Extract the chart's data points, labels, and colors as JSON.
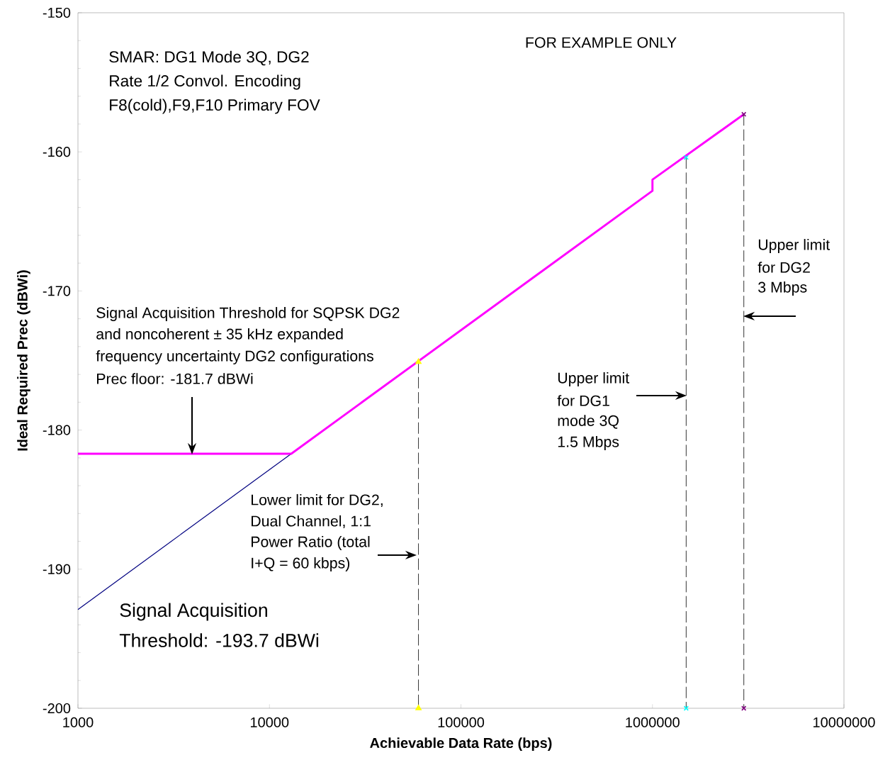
{
  "chart_data": {
    "type": "line",
    "xlabel": "Achievable Data Rate (bps)",
    "ylabel": "Ideal Required Prec (dBWi)",
    "log": "x",
    "xlim": [
      1000,
      10000000
    ],
    "xticks": [
      1000,
      10000,
      100000,
      1000000,
      10000000
    ],
    "ylim": [
      -200,
      -150
    ],
    "yticks": [
      -200,
      -190,
      -180,
      -170,
      -160,
      -150
    ],
    "series": [
      {
        "color": "#000080",
        "marker": "none",
        "line_style": "solid",
        "x": [
          1000,
          13000
        ],
        "values": [
          -192.9,
          -181.7
        ]
      },
      {
        "color": "#ff00ff",
        "marker": "none",
        "line_style": "solid",
        "x": [
          1000,
          13000,
          1000000,
          1000000,
          3000000
        ],
        "values": [
          -181.7,
          -181.7,
          -162.8,
          -162.0,
          -157.3
        ]
      },
      {
        "color": "#000000",
        "marker": "none",
        "line_style": "dashed",
        "x": [
          60000,
          60000
        ],
        "values": [
          -175.1,
          -200
        ]
      },
      {
        "color": "#000000",
        "marker": "none",
        "line_style": "dashed",
        "x": [
          1500000,
          1500000
        ],
        "values": [
          -160.4,
          -200
        ]
      },
      {
        "color": "#000000",
        "marker": "none",
        "line_style": "dashed",
        "x": [
          3000000,
          3000000
        ],
        "values": [
          -157.3,
          -200
        ]
      },
      {
        "type": "scatter",
        "color": "#ffff00",
        "marker": "triangle",
        "x": [
          60000,
          60000
        ],
        "values": [
          -175.1,
          -200
        ]
      },
      {
        "type": "scatter",
        "color": "#00ffff",
        "marker": "cross",
        "x": [
          1500000,
          1500000
        ],
        "values": [
          -160.4,
          -200
        ]
      },
      {
        "type": "scatter",
        "color": "#800080",
        "marker": "cross",
        "x": [
          3000000,
          3000000
        ],
        "values": [
          -157.3,
          -200
        ]
      }
    ],
    "annotations": [
      "FOR EXAMPLE ONLY",
      "SMAR: DG1 Mode 3Q, DG2",
      "Rate 1/2 Convol. Encoding",
      "F8(cold),F9,F10 Primary FOV",
      "Signal Acquisition Threshold for SQPSK DG2",
      "and noncoherent ± 35 kHz expanded",
      "frequency uncertainty DG2 configurations",
      "Prec floor: -181.7 dBWi",
      "Lower limit for DG2,",
      "Dual Channel, 1:1",
      "Power Ratio (total",
      "I+Q = 60 kbps)",
      "Upper limit",
      "for DG1",
      "mode 3Q",
      "1.5 Mbps",
      "Upper limit",
      "for DG2",
      "3 Mbps",
      "Signal Acquisition",
      "Threshold:  -193.7 dBWi"
    ]
  }
}
